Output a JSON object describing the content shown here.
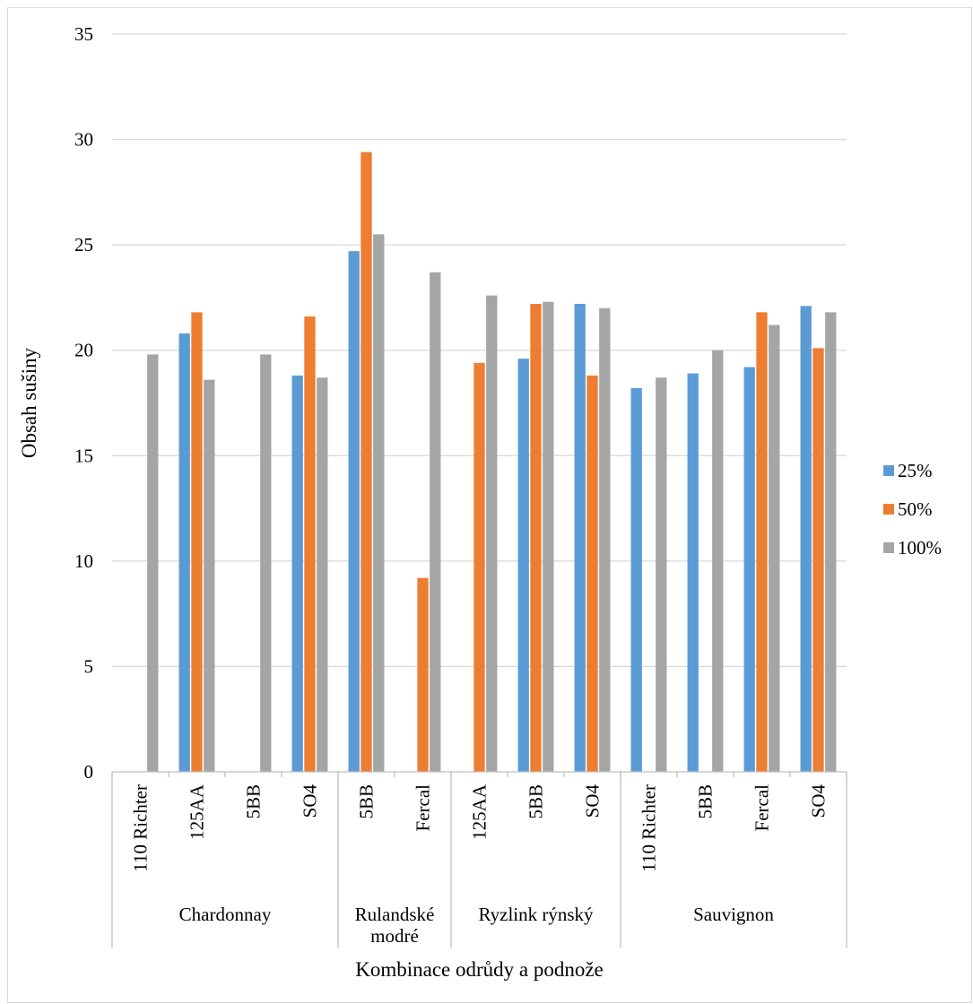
{
  "chart_data": {
    "type": "bar",
    "xlabel": "Kombinace odrůdy a podnože",
    "ylabel": "Obsah sušiny",
    "ylim": [
      0,
      35
    ],
    "yticks": [
      0,
      5,
      10,
      15,
      20,
      25,
      30,
      35
    ],
    "grid": true,
    "legend_position": "right",
    "groups": [
      {
        "label": "Chardonnay",
        "categories": [
          "110 Richter",
          "125AA",
          "5BB",
          "SO4"
        ]
      },
      {
        "label": "Rulandské modré",
        "label_lines": [
          "Rulandské",
          "modré"
        ],
        "categories": [
          "5BB",
          "Fercal"
        ]
      },
      {
        "label": "Ryzlink rýnský",
        "categories": [
          "125AA",
          "5BB",
          "SO4"
        ]
      },
      {
        "label": "Sauvignon",
        "categories": [
          "110 Richter",
          "5BB",
          "Fercal",
          "SO4"
        ]
      }
    ],
    "series": [
      {
        "name": "25%",
        "color": "#5b9bd5",
        "values": [
          null,
          20.8,
          null,
          18.8,
          24.7,
          null,
          null,
          19.6,
          22.2,
          18.2,
          18.9,
          19.2,
          22.1
        ]
      },
      {
        "name": "50%",
        "color": "#ed7d31",
        "values": [
          null,
          21.8,
          null,
          21.6,
          29.4,
          9.2,
          19.4,
          22.2,
          18.8,
          null,
          null,
          21.8,
          20.1
        ]
      },
      {
        "name": "100%",
        "color": "#a5a5a5",
        "values": [
          19.8,
          18.6,
          19.8,
          18.7,
          25.5,
          23.7,
          22.6,
          22.3,
          22.0,
          18.7,
          20.0,
          21.2,
          21.8
        ]
      }
    ]
  }
}
